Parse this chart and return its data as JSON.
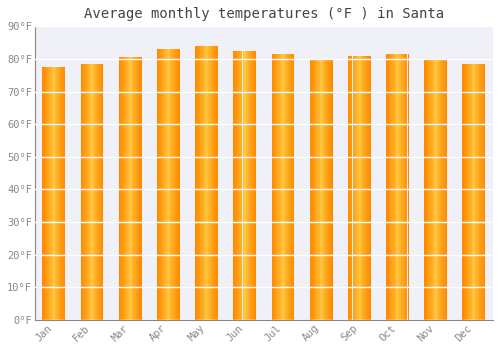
{
  "title": "Average monthly temperatures (°F ) in Santa",
  "months": [
    "Jan",
    "Feb",
    "Mar",
    "Apr",
    "May",
    "Jun",
    "Jul",
    "Aug",
    "Sep",
    "Oct",
    "Nov",
    "Dec"
  ],
  "values": [
    77.5,
    78.5,
    80.5,
    83.0,
    84.0,
    82.5,
    81.5,
    80.0,
    81.0,
    81.5,
    80.0,
    78.5
  ],
  "ylim": [
    0,
    90
  ],
  "yticks": [
    0,
    10,
    20,
    30,
    40,
    50,
    60,
    70,
    80,
    90
  ],
  "bar_color_center": "#FFD060",
  "bar_color_edge": "#FFA010",
  "background_color": "#FFFFFF",
  "plot_bg_color": "#F0F0F8",
  "grid_color": "#FFFFFF",
  "title_fontsize": 10,
  "tick_fontsize": 7.5,
  "font_family": "monospace",
  "bar_width": 0.6
}
